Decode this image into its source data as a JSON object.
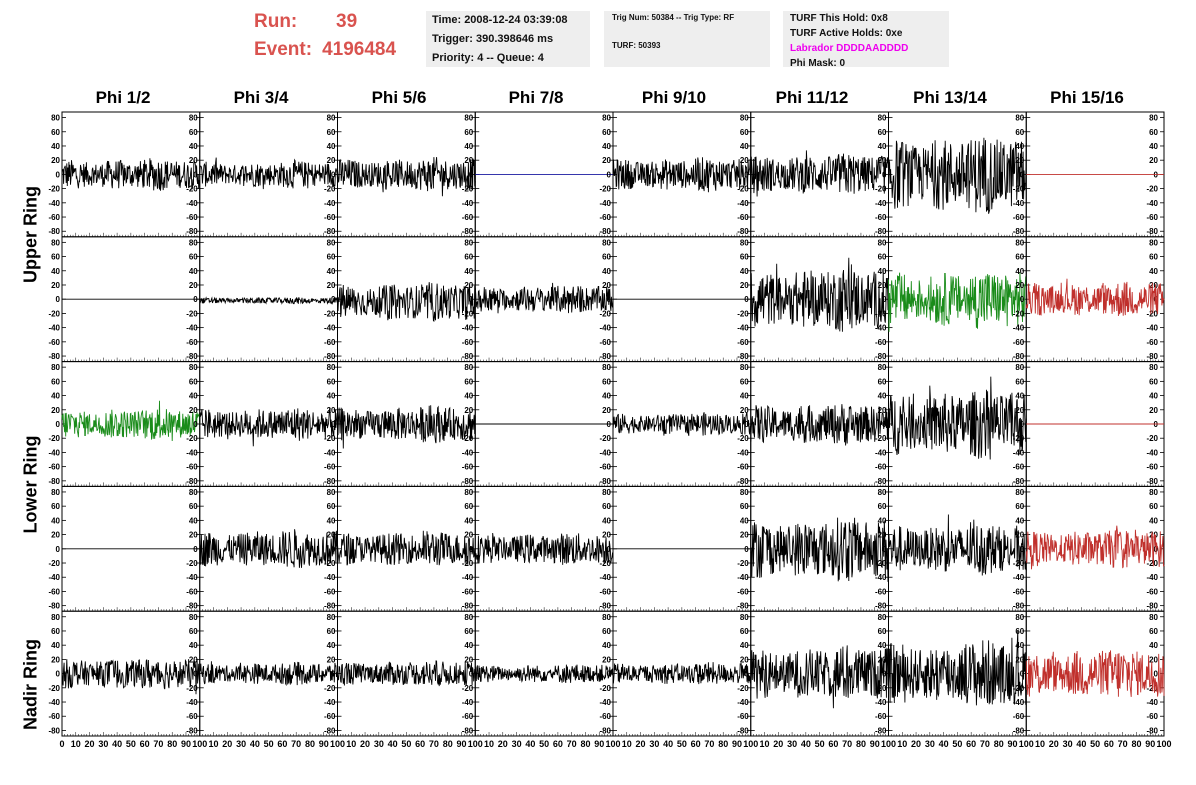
{
  "header": {
    "run_label": "Run:",
    "run_value": "39",
    "event_label": "Event:",
    "event_value": "4196484",
    "time": "Time: 2008-12-24 03:39:08",
    "trigger": "Trigger: 390.398646 ms",
    "priority_queue": "Priority: 4 -- Queue: 4",
    "trig_num": "Trig Num: 50384 -- Trig Type: RF",
    "turf": "TURF: 50393",
    "turf_this_hold": "TURF This Hold: 0x8",
    "turf_active_holds": "TURF Active Holds: 0xe",
    "labrador": "Labrador DDDDAADDDD",
    "phi_mask": "Phi Mask: 0",
    "run_color": "#d9534f",
    "labrador_color": "#ee00ee"
  },
  "columns": [
    "Phi 1/2",
    "Phi 3/4",
    "Phi 5/6",
    "Phi 7/8",
    "Phi 9/10",
    "Phi 11/12",
    "Phi 13/14",
    "Phi 15/16"
  ],
  "ring_labels": {
    "upper": "Upper Ring",
    "lower": "Lower Ring",
    "nadir": "Nadir Ring"
  },
  "chart_data": {
    "type": "line",
    "title": "",
    "rows": 5,
    "cols": 8,
    "xlim": [
      0,
      100
    ],
    "ylim": [
      -85,
      85
    ],
    "y_ticks": [
      80,
      60,
      40,
      20,
      0,
      -20,
      -40,
      -60,
      -80
    ],
    "x_ticks": [
      0,
      10,
      20,
      30,
      40,
      50,
      60,
      70,
      80,
      90,
      100
    ],
    "colors": {
      "black": "#000000",
      "blue": "#1a1aa0",
      "green": "#1a8c1a",
      "red": "#c0302c"
    },
    "panels": [
      [
        {
          "color": "black",
          "amp": 20,
          "offset": 0
        },
        {
          "color": "black",
          "amp": 17,
          "offset": 0
        },
        {
          "color": "black",
          "amp": 21,
          "offset": 0
        },
        {
          "color": "blue",
          "amp": 0,
          "offset": 0
        },
        {
          "color": "black",
          "amp": 21,
          "offset": 0
        },
        {
          "color": "black",
          "amp": 26,
          "offset": 0
        },
        {
          "color": "black",
          "amp": 48,
          "offset": 0
        },
        {
          "color": "red",
          "amp": 0,
          "offset": 0
        }
      ],
      [
        {
          "color": "black",
          "amp": 0,
          "offset": 0
        },
        {
          "color": "black",
          "amp": 4,
          "offset": -2
        },
        {
          "color": "black",
          "amp": 24,
          "offset": -4
        },
        {
          "color": "black",
          "amp": 18,
          "offset": 0
        },
        {
          "color": "black",
          "amp": 0,
          "offset": 0
        },
        {
          "color": "black",
          "amp": 40,
          "offset": 0
        },
        {
          "color": "green",
          "amp": 36,
          "offset": 0
        },
        {
          "color": "red",
          "amp": 22,
          "offset": 0
        }
      ],
      [
        {
          "color": "green",
          "amp": 20,
          "offset": 0
        },
        {
          "color": "black",
          "amp": 21,
          "offset": 0
        },
        {
          "color": "black",
          "amp": 23,
          "offset": 0
        },
        {
          "color": "black",
          "amp": 0,
          "offset": 0
        },
        {
          "color": "black",
          "amp": 14,
          "offset": 0
        },
        {
          "color": "black",
          "amp": 26,
          "offset": 0
        },
        {
          "color": "black",
          "amp": 42,
          "offset": 0
        },
        {
          "color": "red",
          "amp": 0,
          "offset": 0
        }
      ],
      [
        {
          "color": "black",
          "amp": 0,
          "offset": 0
        },
        {
          "color": "black",
          "amp": 24,
          "offset": 0
        },
        {
          "color": "black",
          "amp": 22,
          "offset": 0
        },
        {
          "color": "black",
          "amp": 20,
          "offset": 0
        },
        {
          "color": "black",
          "amp": 0,
          "offset": 0
        },
        {
          "color": "black",
          "amp": 40,
          "offset": 0
        },
        {
          "color": "black",
          "amp": 32,
          "offset": 0
        },
        {
          "color": "red",
          "amp": 24,
          "offset": 0
        }
      ],
      [
        {
          "color": "black",
          "amp": 20,
          "offset": 0
        },
        {
          "color": "black",
          "amp": 14,
          "offset": 0
        },
        {
          "color": "black",
          "amp": 16,
          "offset": 0
        },
        {
          "color": "black",
          "amp": 12,
          "offset": 0
        },
        {
          "color": "black",
          "amp": 14,
          "offset": 0
        },
        {
          "color": "black",
          "amp": 34,
          "offset": 0
        },
        {
          "color": "black",
          "amp": 42,
          "offset": 0
        },
        {
          "color": "red",
          "amp": 32,
          "offset": 0
        }
      ]
    ]
  }
}
